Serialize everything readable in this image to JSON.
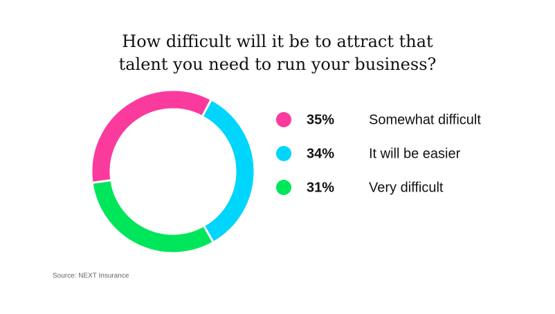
{
  "chart_data": {
    "type": "donut",
    "title": "How difficult will it be to attract that talent you need to run your business?",
    "categories": [
      "Somewhat difficult",
      "It will be easier",
      "Very difficult"
    ],
    "values": [
      35,
      34,
      31
    ],
    "value_labels": [
      "35%",
      "34%",
      "31%"
    ],
    "colors": [
      "#fb3a9e",
      "#00d5fc",
      "#00e65a"
    ],
    "source": "Source: NEXT Insurance"
  }
}
